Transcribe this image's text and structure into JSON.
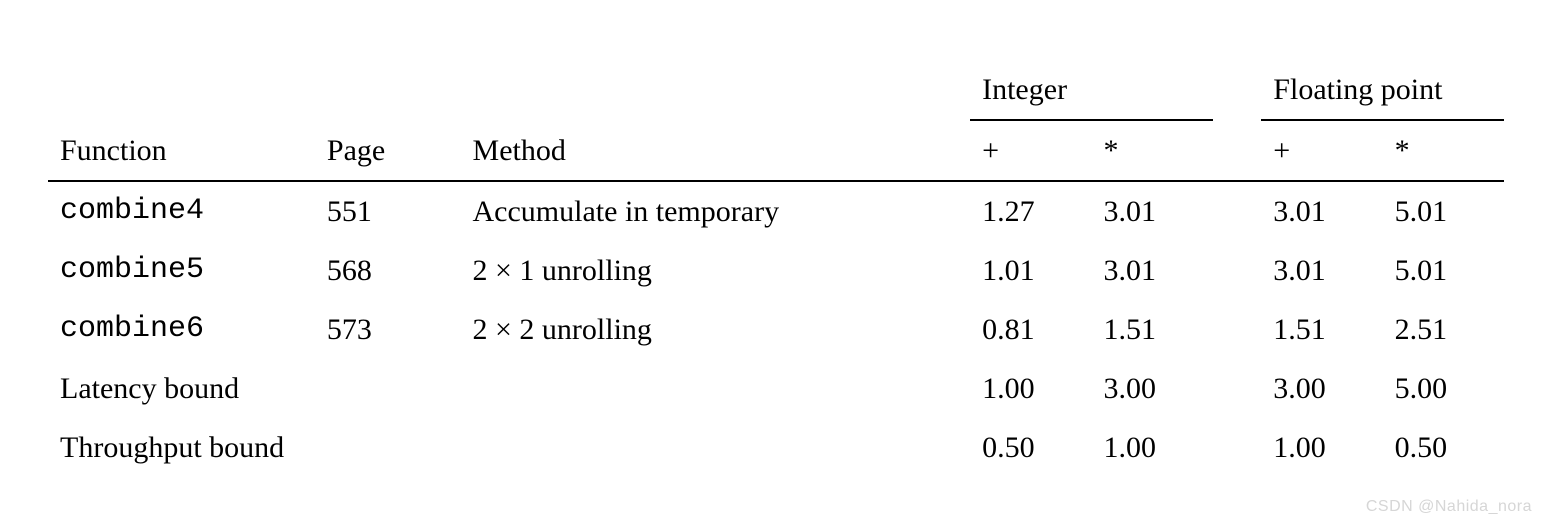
{
  "table": {
    "headers": {
      "function": "Function",
      "page": "Page",
      "method": "Method",
      "integer": "Integer",
      "float": "Floating point",
      "plus": "+",
      "star": "*"
    },
    "rows": [
      {
        "func": "combine4",
        "page": "551",
        "method": "Accumulate in temporary",
        "int_plus": "1.27",
        "int_star": "3.01",
        "fp_plus": "3.01",
        "fp_star": "5.01"
      },
      {
        "func": "combine5",
        "page": "568",
        "method": "2 × 1 unrolling",
        "int_plus": "1.01",
        "int_star": "3.01",
        "fp_plus": "3.01",
        "fp_star": "5.01"
      },
      {
        "func": "combine6",
        "page": "573",
        "method": "2 × 2 unrolling",
        "int_plus": "0.81",
        "int_star": "1.51",
        "fp_plus": "1.51",
        "fp_star": "2.51"
      }
    ],
    "bounds": [
      {
        "label": "Latency bound",
        "int_plus": "1.00",
        "int_star": "3.00",
        "fp_plus": "3.00",
        "fp_star": "5.00"
      },
      {
        "label": "Throughput bound",
        "int_plus": "0.50",
        "int_star": "1.00",
        "fp_plus": "1.00",
        "fp_star": "0.50"
      }
    ]
  },
  "watermark": "CSDN @Nahida_nora"
}
